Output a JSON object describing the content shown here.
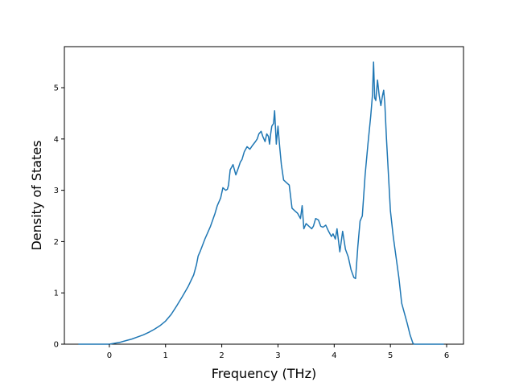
{
  "chart_data": {
    "type": "line",
    "xlabel": "Frequency (THz)",
    "ylabel": "Density of States",
    "xlim": [
      -0.8,
      6.3
    ],
    "ylim": [
      0,
      5.8
    ],
    "xticks": [
      0,
      1,
      2,
      3,
      4,
      5,
      6
    ],
    "yticks": [
      0,
      1,
      2,
      3,
      4,
      5
    ],
    "grid": false,
    "line_color": "#1f77b4",
    "series": [
      {
        "x": [
          -0.55,
          0.0,
          0.1,
          0.2,
          0.3,
          0.4,
          0.5,
          0.6,
          0.7,
          0.8,
          0.9,
          1.0,
          1.1,
          1.2,
          1.3,
          1.4,
          1.5,
          1.55,
          1.58,
          1.62,
          1.7,
          1.8,
          1.88,
          1.92,
          1.98,
          2.02,
          2.07,
          2.1,
          2.12,
          2.15,
          2.2,
          2.25,
          2.3,
          2.33,
          2.36,
          2.4,
          2.45,
          2.5,
          2.55,
          2.6,
          2.63,
          2.66,
          2.7,
          2.73,
          2.77,
          2.8,
          2.83,
          2.85,
          2.87,
          2.89,
          2.92,
          2.94,
          2.97,
          3.0,
          3.03,
          3.06,
          3.1,
          3.15,
          3.2,
          3.25,
          3.3,
          3.35,
          3.4,
          3.43,
          3.46,
          3.5,
          3.55,
          3.6,
          3.63,
          3.67,
          3.72,
          3.76,
          3.8,
          3.85,
          3.9,
          3.95,
          3.98,
          4.02,
          4.05,
          4.1,
          4.15,
          4.2,
          4.25,
          4.3,
          4.35,
          4.38,
          4.42,
          4.46,
          4.5,
          4.55,
          4.6,
          4.65,
          4.68,
          4.7,
          4.72,
          4.74,
          4.77,
          4.8,
          4.83,
          4.86,
          4.88,
          4.9,
          4.93,
          4.96,
          5.0,
          5.05,
          5.1,
          5.15,
          5.2,
          5.25,
          5.3,
          5.35,
          5.4,
          5.42,
          5.45,
          5.6,
          5.95
        ],
        "y": [
          0.0,
          0.0,
          0.02,
          0.04,
          0.07,
          0.1,
          0.14,
          0.18,
          0.23,
          0.29,
          0.36,
          0.45,
          0.58,
          0.75,
          0.93,
          1.12,
          1.35,
          1.55,
          1.72,
          1.82,
          2.05,
          2.3,
          2.55,
          2.7,
          2.85,
          3.05,
          3.0,
          3.02,
          3.1,
          3.4,
          3.5,
          3.3,
          3.45,
          3.55,
          3.6,
          3.75,
          3.85,
          3.8,
          3.88,
          3.95,
          4.0,
          4.1,
          4.15,
          4.05,
          3.95,
          4.1,
          4.05,
          3.9,
          4.1,
          4.25,
          4.3,
          4.55,
          3.9,
          4.25,
          3.85,
          3.5,
          3.2,
          3.15,
          3.1,
          2.65,
          2.6,
          2.55,
          2.45,
          2.7,
          2.25,
          2.35,
          2.3,
          2.25,
          2.3,
          2.45,
          2.42,
          2.3,
          2.28,
          2.32,
          2.2,
          2.1,
          2.15,
          2.05,
          2.25,
          1.8,
          2.2,
          1.85,
          1.7,
          1.45,
          1.3,
          1.28,
          1.9,
          2.4,
          2.5,
          3.3,
          3.9,
          4.45,
          4.85,
          5.5,
          4.8,
          4.75,
          5.15,
          4.85,
          4.65,
          4.85,
          4.95,
          4.7,
          4.0,
          3.4,
          2.6,
          2.1,
          1.7,
          1.3,
          0.8,
          0.6,
          0.4,
          0.18,
          0.02,
          0.0,
          0.0,
          0.0,
          0.0
        ]
      }
    ]
  }
}
